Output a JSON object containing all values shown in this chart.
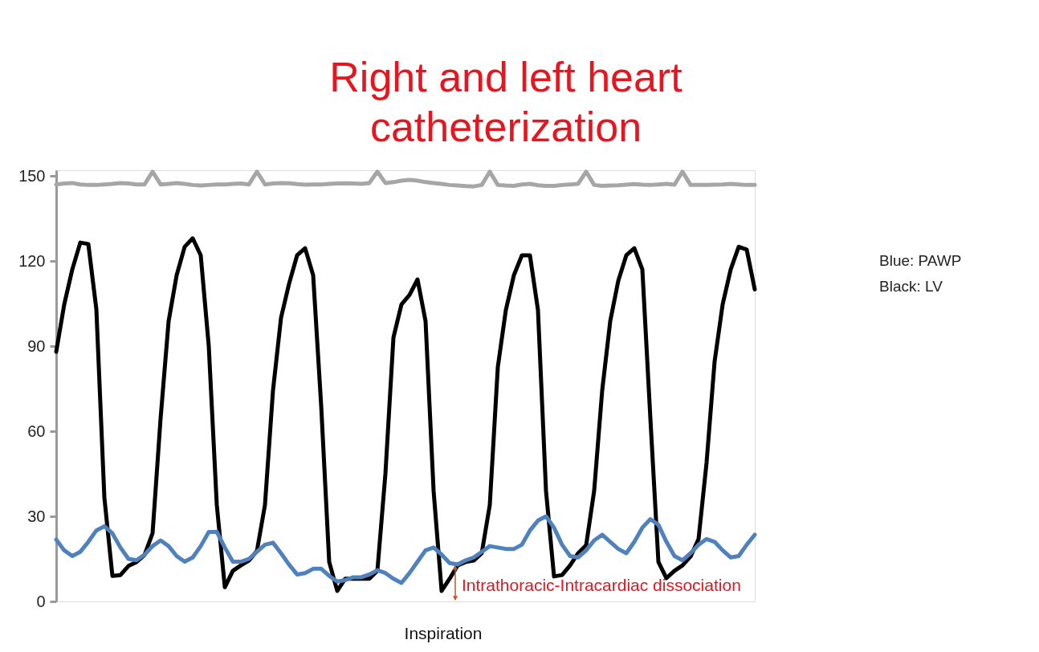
{
  "chart_data": {
    "type": "line",
    "title": "Right and left heart catheterization",
    "xlabel": "Inspiration",
    "categories": [
      null,
      null,
      null,
      null,
      null,
      null,
      null,
      null,
      null,
      null,
      null,
      null,
      null,
      null,
      null,
      null,
      null,
      null,
      null,
      null,
      null,
      null,
      null,
      null,
      null,
      null,
      null,
      null,
      null,
      null,
      null,
      null,
      null,
      null,
      null,
      null,
      null,
      null,
      null,
      null,
      null,
      null,
      null,
      null,
      null,
      null,
      null,
      null,
      null,
      null,
      null,
      null,
      null,
      null,
      null,
      null,
      null,
      null,
      null,
      null,
      null,
      null,
      null,
      null,
      null,
      null,
      null,
      null,
      null,
      null,
      null,
      null,
      null,
      null,
      null,
      null,
      null,
      null,
      null,
      null,
      null,
      null,
      null,
      null,
      null,
      null,
      null,
      null
    ],
    "series": [
      {
        "color": "#a6a6a6",
        "values": [
          147,
          147.3,
          147.5,
          147,
          146.8,
          146.8,
          147,
          147.2,
          147.5,
          147.3,
          147,
          147,
          151.5,
          147,
          147.2,
          147.5,
          147.2,
          146.8,
          146.6,
          146.8,
          147,
          147,
          147.2,
          147.3,
          147,
          151.5,
          147,
          147.3,
          147.5,
          147.4,
          147.1,
          146.9,
          147,
          147,
          147.2,
          147.3,
          147.4,
          147.3,
          147.2,
          147.5,
          151.5,
          147.5,
          147.8,
          148.3,
          148.6,
          148.3,
          147.8,
          147.5,
          147.2,
          146.8,
          146.6,
          146.4,
          146.3,
          146.8,
          151.5,
          146.8,
          146.6,
          146.5,
          147,
          147.2,
          146.7,
          146.5,
          146.5,
          146.8,
          147,
          147.2,
          151.5,
          146.8,
          146.5,
          146.6,
          146.7,
          146.9,
          147.1,
          146.9,
          146.8,
          147,
          147.2,
          146.9,
          151.5,
          146.8,
          146.8,
          146.8,
          146.9,
          147,
          147.2,
          147,
          146.8,
          146.8
        ]
      },
      {
        "color": "#000000",
        "values": [
          88,
          104.7,
          117,
          126.5,
          126,
          103,
          36.5,
          9,
          9.3,
          12.5,
          13.9,
          16.4,
          24,
          64.5,
          98.8,
          115,
          125,
          128,
          122,
          90,
          34,
          5,
          10.8,
          12.7,
          14.4,
          17.8,
          34,
          74.4,
          100,
          112,
          122,
          124.5,
          115,
          69,
          13.9,
          3.7,
          8,
          8,
          8,
          8,
          10.8,
          45,
          93,
          104.7,
          108,
          113.5,
          98.8,
          39,
          3.7,
          8,
          12.7,
          13.9,
          14.4,
          17,
          34,
          82.6,
          102.7,
          115,
          122,
          122,
          102.7,
          39,
          8.8,
          9.3,
          12.7,
          17,
          19.8,
          39,
          74.4,
          98.8,
          113,
          122,
          124.5,
          117,
          64.5,
          13.9,
          8.2,
          10.8,
          12.7,
          15.8,
          22,
          49,
          84.6,
          104.7,
          117,
          125,
          124,
          110
        ]
      },
      {
        "color": "#4f81bd",
        "values": [
          21.8,
          18,
          16,
          17.5,
          21,
          25,
          26.5,
          24,
          19,
          15,
          14.5,
          16.5,
          19.5,
          21.5,
          19.5,
          16,
          14,
          15.5,
          19.5,
          24.5,
          24.5,
          19,
          14,
          14,
          15,
          17.5,
          20,
          20.7,
          17,
          13,
          9.5,
          10,
          11.5,
          11.5,
          9,
          7,
          7.5,
          8.5,
          8.5,
          9.5,
          11,
          10,
          8,
          6.5,
          10,
          14,
          18,
          19,
          16.5,
          13.5,
          13,
          14.5,
          15.5,
          17.5,
          19.5,
          19,
          18.5,
          18.5,
          20,
          25,
          28.5,
          30,
          26,
          20,
          16,
          15.5,
          18,
          21.5,
          23.5,
          21,
          18.5,
          17,
          21,
          26,
          29,
          27,
          21,
          16,
          14.5,
          17,
          20,
          22,
          21,
          18,
          15.5,
          16,
          20,
          23.5
        ]
      }
    ],
    "ylim": [
      0,
      152
    ],
    "yticks": [
      0,
      30,
      60,
      90,
      120,
      150
    ],
    "tick_labels": "y",
    "annotations": [
      "Blue: PAWP",
      "Black: LV",
      "Intrathoracic-Intracardiac dissociation"
    ]
  }
}
